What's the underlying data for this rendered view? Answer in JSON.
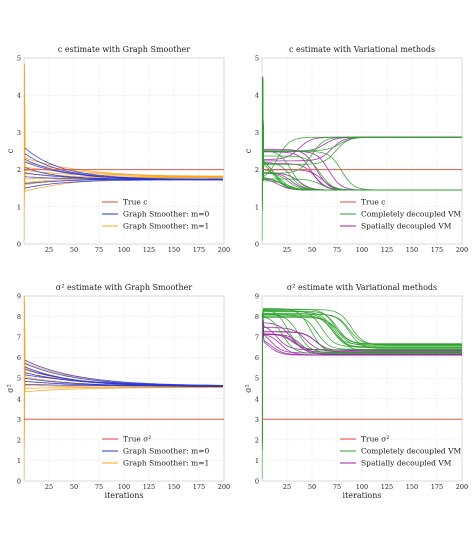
{
  "chart_data": [
    {
      "type": "line",
      "title": "c estimate with Graph Smoother",
      "xlabel": "",
      "ylabel": "c",
      "xlim": [
        0,
        200
      ],
      "ylim": [
        0,
        5
      ],
      "xticks": [
        "25",
        "50",
        "75",
        "100",
        "125",
        "150",
        "175",
        "200"
      ],
      "yticks": [
        "0",
        "1",
        "2",
        "3",
        "4",
        "5"
      ],
      "grid": true,
      "legend_position": "lower-right",
      "true_value": 2.0,
      "series": [
        {
          "name": "True c",
          "color": "#e8473a",
          "values": [
            2.0,
            2.0
          ]
        },
        {
          "name": "Graph Smoother: m=0",
          "color": "#2a35d6",
          "start_values": [
            2.6,
            2.4,
            2.2,
            1.6,
            1.5
          ],
          "final_value": 1.73,
          "settle_iteration": 120
        },
        {
          "name": "Graph Smoother: m=1",
          "color": "#f5a623",
          "start_values": [
            2.3,
            2.1,
            2.0,
            1.9,
            1.8,
            1.7,
            1.5,
            1.45
          ],
          "final_value": 1.8,
          "settle_iteration": 180,
          "spike_max": 5.0
        }
      ]
    },
    {
      "type": "line",
      "title": "c estimate with Variational methods",
      "xlabel": "",
      "ylabel": "c",
      "xlim": [
        0,
        200
      ],
      "ylim": [
        0,
        5
      ],
      "xticks": [
        "25",
        "50",
        "75",
        "100",
        "125",
        "150",
        "175",
        "200"
      ],
      "yticks": [
        "0",
        "1",
        "2",
        "3",
        "4",
        "5"
      ],
      "grid": true,
      "legend_position": "lower-right",
      "true_value": 2.0,
      "series": [
        {
          "name": "True c",
          "color": "#e8473a",
          "values": [
            2.0,
            2.0
          ]
        },
        {
          "name": "Completely decoupled VM",
          "color": "#2ca02c",
          "upper_final": 2.87,
          "lower_final": 1.45,
          "switch_range": [
            10,
            80
          ]
        },
        {
          "name": "Spatially decoupled VM",
          "color": "#9b1fa5",
          "upper_final": 2.87,
          "lower_final": 1.45,
          "switch_range": [
            5,
            75
          ]
        }
      ]
    },
    {
      "type": "line",
      "title": "σ² estimate with Graph Smoother",
      "xlabel": "iterations",
      "ylabel": "σ²",
      "xlim": [
        0,
        200
      ],
      "ylim": [
        0,
        9
      ],
      "xticks": [
        "25",
        "50",
        "75",
        "100",
        "125",
        "150",
        "175",
        "200"
      ],
      "yticks": [
        "0",
        "1",
        "2",
        "3",
        "4",
        "5",
        "6",
        "7",
        "8",
        "9"
      ],
      "grid": true,
      "legend_position": "lower-right",
      "true_value": 3.0,
      "series": [
        {
          "name": "True σ²",
          "color": "#e8473a",
          "values": [
            3.0,
            3.0
          ]
        },
        {
          "name": "Graph Smoother: m=0",
          "color": "#2a35d6",
          "start_values": [
            5.9,
            5.4,
            5.1,
            4.9,
            4.7
          ],
          "final_value": 4.6,
          "settle_iteration": 190
        },
        {
          "name": "Graph Smoother: m=1",
          "color": "#f5a623",
          "start_values": [
            5.8,
            5.2,
            4.9,
            4.6,
            4.3
          ],
          "final_value": 4.55,
          "settle_iteration": 190,
          "spike_max": 9.0
        }
      ]
    },
    {
      "type": "line",
      "title": "σ² estimate with Variational methods",
      "xlabel": "iterations",
      "ylabel": "σ²",
      "xlim": [
        0,
        200
      ],
      "ylim": [
        0,
        9
      ],
      "xticks": [
        "25",
        "50",
        "75",
        "100",
        "125",
        "150",
        "175",
        "200"
      ],
      "yticks": [
        "0",
        "1",
        "2",
        "3",
        "4",
        "5",
        "6",
        "7",
        "8",
        "9"
      ],
      "grid": true,
      "legend_position": "lower-right",
      "true_value": 3.0,
      "series": [
        {
          "name": "True σ²",
          "color": "#e8473a",
          "values": [
            3.0,
            3.0
          ]
        },
        {
          "name": "Completely decoupled VM",
          "color": "#2ca02c",
          "start_range": [
            7.9,
            8.4
          ],
          "final_range": [
            6.2,
            6.7
          ],
          "switch_range": [
            20,
            90
          ]
        },
        {
          "name": "Spatially decoupled VM",
          "color": "#9b1fa5",
          "start_range": [
            7.0,
            8.1
          ],
          "final_range": [
            6.1,
            6.4
          ],
          "switch_range": [
            5,
            55
          ]
        }
      ]
    }
  ]
}
